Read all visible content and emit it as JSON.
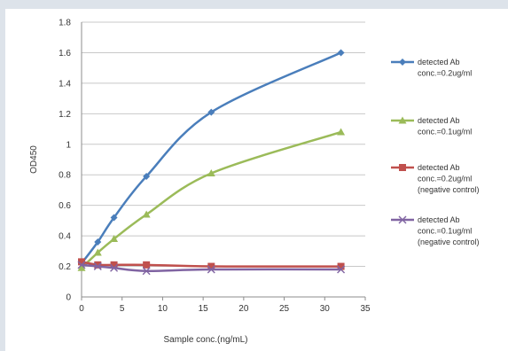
{
  "chart_data": {
    "type": "line",
    "title": "",
    "xlabel": "Sample conc.(ng/mL)",
    "ylabel": "OD450",
    "xlim": [
      0,
      35
    ],
    "ylim": [
      0,
      1.8
    ],
    "x_ticks": [
      "0",
      "5",
      "10",
      "15",
      "20",
      "25",
      "30",
      "35"
    ],
    "y_ticks": [
      "0",
      "0.2",
      "0.4",
      "0.6",
      "0.8",
      "1",
      "1.2",
      "1.4",
      "1.6",
      "1.8"
    ],
    "grid": true,
    "legend_position": "right",
    "x": [
      0,
      2,
      4,
      8,
      16,
      32
    ],
    "series": [
      {
        "name": [
          "detected Ab",
          "conc.=0.2ug/ml"
        ],
        "marker": "diamond",
        "color": "#4a7ebb",
        "values": [
          0.22,
          0.36,
          0.52,
          0.79,
          1.21,
          1.6
        ]
      },
      {
        "name": [
          "detected Ab",
          "conc.=0.1ug/ml"
        ],
        "marker": "triangle",
        "color": "#9bbb59",
        "values": [
          0.19,
          0.29,
          0.38,
          0.54,
          0.81,
          1.08
        ]
      },
      {
        "name": [
          "detected Ab",
          "conc.=0.2ug/ml",
          "(negative control)"
        ],
        "marker": "square",
        "color": "#c0504d",
        "values": [
          0.23,
          0.21,
          0.21,
          0.21,
          0.2,
          0.2
        ]
      },
      {
        "name": [
          "detected Ab",
          "conc.=0.1ug/ml",
          "(negative control)"
        ],
        "marker": "cross",
        "color": "#8064a2",
        "values": [
          0.21,
          0.2,
          0.19,
          0.17,
          0.18,
          0.18
        ]
      }
    ]
  }
}
